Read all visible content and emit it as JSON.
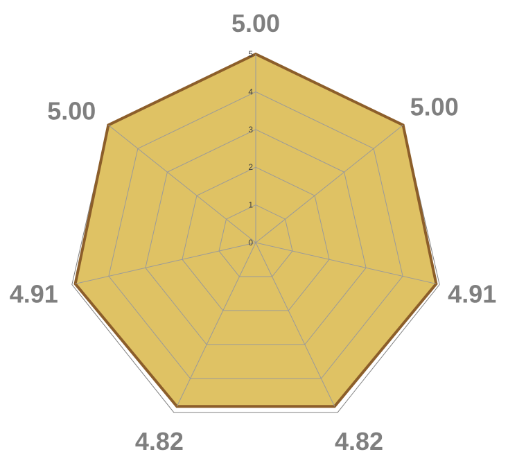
{
  "chart_data": {
    "type": "radar",
    "axes_count": 7,
    "rlim": [
      0,
      5
    ],
    "ticks": [
      "0",
      "1",
      "2",
      "3",
      "4",
      "5"
    ],
    "series": [
      {
        "values": [
          5.0,
          5.0,
          4.91,
          4.82,
          4.82,
          4.91,
          5.0
        ]
      }
    ],
    "data_labels": [
      "5.00",
      "5.00",
      "4.91",
      "4.82",
      "4.82",
      "4.91",
      "5.00"
    ],
    "grid": true,
    "legend": "none",
    "colors": {
      "fill": "#dfc264",
      "stroke": "#8c5e2a",
      "grid": "#9a9a9a",
      "outer_frame": "#808080",
      "label": "#7f7f7f"
    }
  }
}
